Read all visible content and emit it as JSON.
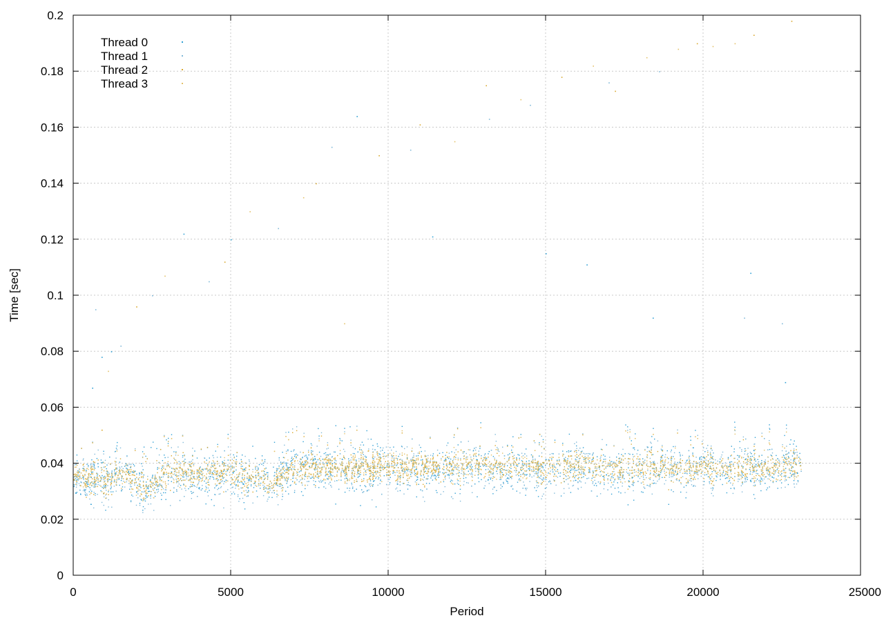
{
  "chart_data": {
    "type": "scatter",
    "title": "",
    "xlabel": "Period",
    "ylabel": "Time [sec]",
    "xlim": [
      0,
      25000
    ],
    "ylim": [
      0,
      0.2
    ],
    "x_ticks": [
      0,
      5000,
      10000,
      15000,
      20000,
      25000
    ],
    "x_tick_labels": [
      "0",
      "5000",
      "10000",
      "15000",
      "20000",
      "25000"
    ],
    "y_ticks": [
      0,
      0.02,
      0.04,
      0.06,
      0.08,
      0.1,
      0.12,
      0.14,
      0.16,
      0.18,
      0.2
    ],
    "y_tick_labels": [
      "0",
      "0.02",
      "0.04",
      "0.06",
      "0.08",
      "0.1",
      "0.12",
      "0.14",
      "0.16",
      "0.18",
      "0.2"
    ],
    "grid": true,
    "legend_position": "top-left",
    "x_max_data": 23100,
    "series": [
      {
        "name": "Thread 0",
        "color": "#2e9fd4",
        "trend": [
          [
            0,
            0.035
          ],
          [
            1000,
            0.034
          ],
          [
            1600,
            0.036
          ],
          [
            2300,
            0.031
          ],
          [
            3000,
            0.036
          ],
          [
            5000,
            0.036
          ],
          [
            6400,
            0.034
          ],
          [
            7000,
            0.038
          ],
          [
            10000,
            0.038
          ],
          [
            12000,
            0.038
          ],
          [
            15000,
            0.038
          ],
          [
            20000,
            0.038
          ],
          [
            23100,
            0.039
          ]
        ],
        "spread": 0.0075,
        "tail": 0.024,
        "outliers": [
          [
            600,
            0.067
          ],
          [
            900,
            0.078
          ],
          [
            1200,
            0.08
          ],
          [
            3500,
            0.122
          ],
          [
            5000,
            0.12
          ],
          [
            9000,
            0.164
          ],
          [
            11400,
            0.121
          ],
          [
            15000,
            0.115
          ],
          [
            16300,
            0.111
          ],
          [
            18400,
            0.092
          ],
          [
            21500,
            0.108
          ],
          [
            22600,
            0.069
          ]
        ]
      },
      {
        "name": "Thread 1",
        "color": "#7fb8d8",
        "trend": [
          [
            0,
            0.035
          ],
          [
            1000,
            0.033
          ],
          [
            1600,
            0.036
          ],
          [
            2300,
            0.03
          ],
          [
            3000,
            0.036
          ],
          [
            5000,
            0.036
          ],
          [
            6400,
            0.033
          ],
          [
            7000,
            0.038
          ],
          [
            10000,
            0.038
          ],
          [
            12000,
            0.038
          ],
          [
            15000,
            0.038
          ],
          [
            20000,
            0.038
          ],
          [
            23100,
            0.039
          ]
        ],
        "spread": 0.0075,
        "tail": 0.022,
        "outliers": [
          [
            700,
            0.095
          ],
          [
            1500,
            0.082
          ],
          [
            2500,
            0.1
          ],
          [
            4300,
            0.105
          ],
          [
            6500,
            0.124
          ],
          [
            8200,
            0.153
          ],
          [
            10700,
            0.152
          ],
          [
            13200,
            0.163
          ],
          [
            14500,
            0.168
          ],
          [
            17000,
            0.176
          ],
          [
            18600,
            0.18
          ],
          [
            21300,
            0.092
          ],
          [
            22500,
            0.09
          ]
        ]
      },
      {
        "name": "Thread 2",
        "color": "#d9a72c",
        "trend": [
          [
            0,
            0.036
          ],
          [
            1000,
            0.034
          ],
          [
            1600,
            0.036
          ],
          [
            2300,
            0.031
          ],
          [
            3000,
            0.037
          ],
          [
            5000,
            0.037
          ],
          [
            6400,
            0.033
          ],
          [
            7000,
            0.038
          ],
          [
            10000,
            0.038
          ],
          [
            12000,
            0.039
          ],
          [
            15000,
            0.039
          ],
          [
            20000,
            0.038
          ],
          [
            23100,
            0.039
          ]
        ],
        "spread": 0.0045,
        "tail": 0.02,
        "outliers": [
          [
            900,
            0.052
          ],
          [
            2000,
            0.096
          ],
          [
            4800,
            0.112
          ],
          [
            7700,
            0.14
          ],
          [
            9700,
            0.15
          ],
          [
            11000,
            0.161
          ],
          [
            13100,
            0.175
          ],
          [
            15500,
            0.178
          ],
          [
            17200,
            0.173
          ],
          [
            19800,
            0.19
          ],
          [
            21600,
            0.193
          ],
          [
            22800,
            0.198
          ]
        ]
      },
      {
        "name": "Thread 3",
        "color": "#e3c068",
        "trend": [
          [
            0,
            0.036
          ],
          [
            1000,
            0.034
          ],
          [
            1600,
            0.036
          ],
          [
            2300,
            0.031
          ],
          [
            3000,
            0.037
          ],
          [
            5000,
            0.037
          ],
          [
            6400,
            0.033
          ],
          [
            7000,
            0.038
          ],
          [
            10000,
            0.039
          ],
          [
            12000,
            0.039
          ],
          [
            15000,
            0.039
          ],
          [
            20000,
            0.038
          ],
          [
            23100,
            0.039
          ]
        ],
        "spread": 0.0045,
        "tail": 0.02,
        "outliers": [
          [
            400,
            0.028
          ],
          [
            1100,
            0.073
          ],
          [
            2900,
            0.107
          ],
          [
            5600,
            0.13
          ],
          [
            7300,
            0.135
          ],
          [
            8600,
            0.09
          ],
          [
            12100,
            0.155
          ],
          [
            14200,
            0.17
          ],
          [
            16500,
            0.182
          ],
          [
            18200,
            0.185
          ],
          [
            19200,
            0.188
          ],
          [
            20300,
            0.189
          ],
          [
            21000,
            0.19
          ]
        ]
      }
    ]
  }
}
